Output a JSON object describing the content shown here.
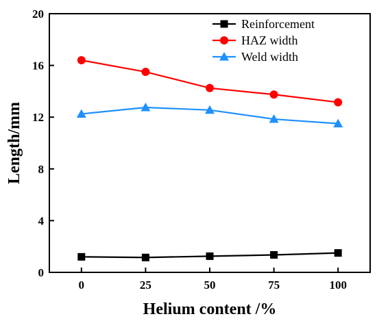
{
  "chart_data": {
    "type": "line",
    "title": "",
    "xlabel": "Helium content /%",
    "ylabel": "Length/mm",
    "x": [
      0,
      25,
      50,
      75,
      100
    ],
    "xticks": [
      "0",
      "25",
      "50",
      "75",
      "100"
    ],
    "yticks": [
      "0",
      "4",
      "8",
      "12",
      "16",
      "20"
    ],
    "xlim": [
      -12.5,
      112.5
    ],
    "ylim": [
      0,
      20
    ],
    "grid": false,
    "legend_position": "top-right",
    "series": [
      {
        "name": "Reinforcement",
        "values": [
          1.2,
          1.15,
          1.25,
          1.35,
          1.5
        ],
        "color": "#000000",
        "marker": "square"
      },
      {
        "name": "HAZ width",
        "values": [
          16.4,
          15.5,
          14.25,
          13.75,
          13.15
        ],
        "color": "#ff0000",
        "marker": "circle"
      },
      {
        "name": "Weld width",
        "values": [
          12.25,
          12.75,
          12.55,
          11.85,
          11.5
        ],
        "color": "#1e90ff",
        "marker": "triangle"
      }
    ]
  }
}
